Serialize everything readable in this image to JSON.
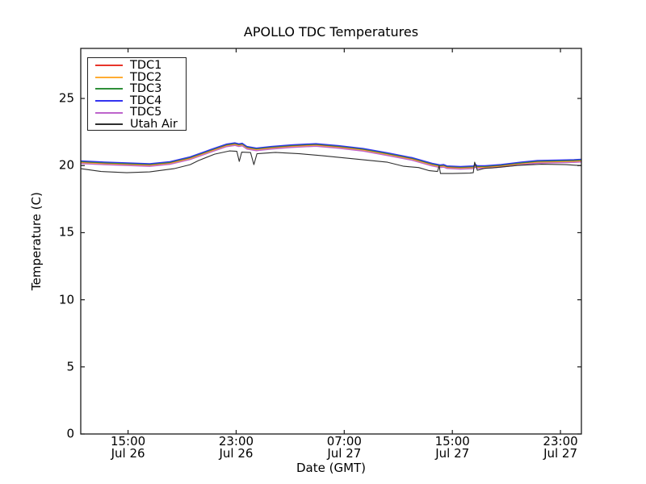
{
  "chart_data": {
    "type": "line",
    "title": "APOLLO TDC Temperatures",
    "xlabel": "Date (GMT)",
    "ylabel": "Temperature (C)",
    "x_unit": "hours since Jul 26 00:00 GMT",
    "xlim": [
      11.5,
      48.55
    ],
    "ylim": [
      0,
      28.73
    ],
    "grid": false,
    "legend_position": "upper left",
    "axis_color": "#1a1a1a",
    "xticks": [
      {
        "hour": 15,
        "time": "15:00",
        "date": "Jul 26"
      },
      {
        "hour": 23,
        "time": "23:00",
        "date": "Jul 26"
      },
      {
        "hour": 31,
        "time": "07:00",
        "date": "Jul 27"
      },
      {
        "hour": 39,
        "time": "15:00",
        "date": "Jul 27"
      },
      {
        "hour": 47,
        "time": "23:00",
        "date": "Jul 27"
      }
    ],
    "yticks": [
      {
        "value": 0,
        "label": "0"
      },
      {
        "value": 5,
        "label": "5"
      },
      {
        "value": 10,
        "label": "10"
      },
      {
        "value": 15,
        "label": "15"
      },
      {
        "value": 20,
        "label": "20"
      },
      {
        "value": 25,
        "label": "25"
      }
    ],
    "series": [
      {
        "name": "TDC1",
        "color": "#e8352a",
        "x": [
          11.5,
          13.3,
          15.0,
          16.6,
          18.1,
          19.6,
          21.1,
          22.3,
          22.9,
          23.2,
          23.45,
          23.8,
          24.5,
          25.6,
          27.1,
          28.9,
          30.6,
          32.4,
          34.2,
          36.0,
          37.5,
          38.1,
          38.35,
          38.6,
          39.6,
          40.55,
          40.7,
          40.85,
          41.4,
          42.6,
          44.1,
          45.3,
          46.8,
          48.0,
          48.55
        ],
        "values": [
          20.25,
          20.16,
          20.1,
          20.04,
          20.19,
          20.55,
          21.09,
          21.51,
          21.6,
          21.52,
          21.57,
          21.33,
          21.21,
          21.33,
          21.45,
          21.54,
          21.39,
          21.18,
          20.85,
          20.5,
          20.07,
          19.95,
          19.98,
          19.88,
          19.83,
          19.87,
          19.99,
          19.89,
          19.89,
          19.98,
          20.16,
          20.28,
          20.31,
          20.34,
          20.37
        ]
      },
      {
        "name": "TDC2",
        "color": "#ffac33",
        "x": [
          11.5,
          13.3,
          15.0,
          16.6,
          18.1,
          19.6,
          21.1,
          22.3,
          22.9,
          23.2,
          23.45,
          23.8,
          24.5,
          25.6,
          27.1,
          28.9,
          30.6,
          32.4,
          34.2,
          36.0,
          37.5,
          38.1,
          38.35,
          38.6,
          39.6,
          40.55,
          40.7,
          40.85,
          41.4,
          42.6,
          44.1,
          45.3,
          46.8,
          48.0,
          48.55
        ],
        "values": [
          20.2,
          20.11,
          20.05,
          19.99,
          20.14,
          20.5,
          21.04,
          21.46,
          21.55,
          21.47,
          21.52,
          21.28,
          21.16,
          21.28,
          21.4,
          21.49,
          21.34,
          21.13,
          20.8,
          20.45,
          20.02,
          19.9,
          19.93,
          19.83,
          19.78,
          19.82,
          19.94,
          19.84,
          19.84,
          19.93,
          20.11,
          20.23,
          20.26,
          20.29,
          20.32
        ]
      },
      {
        "name": "TDC3",
        "color": "#2f8f39",
        "x": [
          11.5,
          13.3,
          15.0,
          16.6,
          18.1,
          19.6,
          21.1,
          22.3,
          22.9,
          23.2,
          23.45,
          23.8,
          24.5,
          25.6,
          27.1,
          28.9,
          30.6,
          32.4,
          34.2,
          36.0,
          37.5,
          38.1,
          38.35,
          38.6,
          39.6,
          40.55,
          40.7,
          40.85,
          41.4,
          42.6,
          44.1,
          45.3,
          46.8,
          48.0,
          48.55
        ],
        "values": [
          20.3,
          20.21,
          20.15,
          20.09,
          20.24,
          20.6,
          21.14,
          21.56,
          21.65,
          21.57,
          21.62,
          21.38,
          21.26,
          21.38,
          21.5,
          21.59,
          21.44,
          21.23,
          20.9,
          20.55,
          20.12,
          20.0,
          20.03,
          19.93,
          19.88,
          19.92,
          20.04,
          19.94,
          19.94,
          20.03,
          20.21,
          20.33,
          20.36,
          20.39,
          20.42
        ]
      },
      {
        "name": "TDC4",
        "color": "#3333f0",
        "x": [
          11.5,
          13.3,
          15.0,
          16.6,
          18.1,
          19.6,
          21.1,
          22.3,
          22.9,
          23.2,
          23.45,
          23.8,
          24.5,
          25.6,
          27.1,
          28.9,
          30.6,
          32.4,
          34.2,
          36.0,
          37.5,
          38.1,
          38.35,
          38.6,
          39.6,
          40.55,
          40.7,
          40.85,
          41.4,
          42.6,
          44.1,
          45.3,
          46.8,
          48.0,
          48.55
        ],
        "values": [
          20.35,
          20.26,
          20.2,
          20.14,
          20.29,
          20.65,
          21.19,
          21.61,
          21.7,
          21.62,
          21.67,
          21.43,
          21.31,
          21.43,
          21.55,
          21.64,
          21.49,
          21.28,
          20.95,
          20.6,
          20.17,
          20.05,
          20.08,
          19.98,
          19.93,
          19.97,
          20.09,
          19.99,
          19.99,
          20.08,
          20.26,
          20.38,
          20.41,
          20.44,
          20.47
        ]
      },
      {
        "name": "TDC5",
        "color": "#bd64cc",
        "x": [
          11.5,
          13.3,
          15.0,
          16.6,
          18.1,
          19.6,
          21.1,
          22.3,
          22.9,
          23.2,
          23.45,
          23.8,
          24.5,
          25.6,
          27.1,
          28.9,
          30.6,
          32.4,
          34.2,
          36.0,
          37.5,
          38.1,
          38.35,
          38.6,
          39.6,
          40.55,
          40.7,
          40.85,
          41.4,
          42.6,
          44.1,
          45.3,
          46.8,
          48.0,
          48.55
        ],
        "values": [
          20.15,
          20.06,
          20.0,
          19.94,
          20.09,
          20.45,
          20.99,
          21.41,
          21.5,
          21.42,
          21.47,
          21.23,
          21.11,
          21.23,
          21.35,
          21.44,
          21.29,
          21.08,
          20.75,
          20.4,
          19.97,
          19.85,
          19.88,
          19.78,
          19.73,
          19.77,
          19.89,
          19.79,
          19.79,
          19.88,
          20.06,
          20.18,
          20.21,
          20.24,
          20.27
        ]
      },
      {
        "name": "Utah Air",
        "color": "#2e2e2e",
        "x": [
          11.5,
          13.0,
          14.9,
          16.6,
          18.4,
          19.6,
          20.2,
          21.4,
          22.5,
          23.05,
          23.23,
          23.41,
          24.07,
          24.31,
          24.54,
          25.9,
          27.7,
          29.4,
          31.2,
          33.0,
          34.2,
          35.4,
          36.5,
          37.3,
          37.9,
          38.02,
          38.12,
          39.0,
          40.3,
          40.55,
          40.65,
          40.85,
          41.4,
          42.0,
          43.8,
          45.6,
          47.4,
          48.3,
          48.55
        ],
        "values": [
          19.77,
          19.56,
          19.47,
          19.53,
          19.77,
          20.07,
          20.37,
          20.85,
          21.09,
          21.06,
          20.31,
          21.0,
          20.97,
          20.07,
          20.88,
          20.98,
          20.88,
          20.73,
          20.55,
          20.37,
          20.25,
          19.95,
          19.85,
          19.62,
          19.56,
          19.98,
          19.41,
          19.41,
          19.44,
          19.47,
          20.25,
          19.65,
          19.8,
          19.83,
          20.01,
          20.1,
          20.07,
          20.01,
          20.01
        ]
      }
    ]
  }
}
